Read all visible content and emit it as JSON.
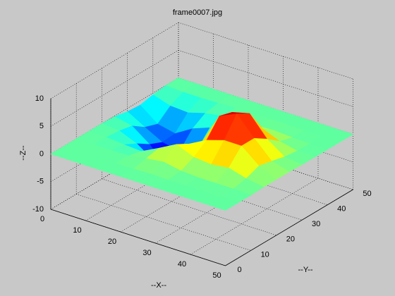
{
  "chart_data": {
    "type": "surface",
    "title": "frame0007.jpg",
    "xlabel": "--X--",
    "ylabel": "--Y--",
    "zlabel": "--Z--",
    "colormap": "jet",
    "grid": true,
    "x": [
      0,
      5,
      10,
      15,
      20,
      25,
      30,
      35,
      40,
      45,
      50
    ],
    "y": [
      0,
      5,
      10,
      15,
      20,
      25,
      30,
      35,
      40,
      45,
      50
    ],
    "z": [
      [
        0,
        0,
        0,
        0,
        0,
        -0.1,
        -0.6,
        -0.8,
        -0.3,
        0,
        0
      ],
      [
        0,
        0,
        0,
        -0.1,
        -0.3,
        -0.8,
        -2.4,
        -3.2,
        -1.3,
        -0.2,
        0
      ],
      [
        0,
        0,
        0,
        -0.4,
        -1.6,
        -3.1,
        -4.1,
        -3.9,
        -1.5,
        -0.2,
        0
      ],
      [
        0,
        0,
        0,
        -0.6,
        -3.8,
        -6.6,
        -4.7,
        -2.0,
        -0.6,
        -0.1,
        0
      ],
      [
        0,
        0,
        0.5,
        1.0,
        -2.3,
        -5.5,
        -3.4,
        -0.8,
        -0.1,
        0,
        0
      ],
      [
        0,
        0.1,
        0.9,
        2.7,
        1.4,
        0.3,
        0.7,
        0.4,
        0.1,
        0,
        0
      ],
      [
        0,
        0,
        0.3,
        1.4,
        3.1,
        6.1,
        5.4,
        1.9,
        0.2,
        0,
        0
      ],
      [
        0,
        0,
        0.1,
        1.1,
        4.1,
        7.5,
        6.2,
        2.1,
        0.3,
        0,
        0
      ],
      [
        0,
        0,
        0.1,
        1.5,
        4.1,
        4.1,
        2.6,
        0.8,
        0.1,
        0,
        0
      ],
      [
        0,
        0,
        0.1,
        0.6,
        1.5,
        1.0,
        0.4,
        0.1,
        0,
        0,
        0
      ],
      [
        0,
        0,
        0,
        0.1,
        0.1,
        0.1,
        0,
        0,
        0,
        0,
        0
      ]
    ],
    "xlim": [
      0,
      50
    ],
    "ylim": [
      0,
      50
    ],
    "zlim": [
      -10,
      10
    ],
    "xticks": [
      0,
      10,
      20,
      30,
      40,
      50
    ],
    "yticks": [
      0,
      10,
      20,
      30,
      40,
      50
    ],
    "zticks": [
      -10,
      -5,
      0,
      5,
      10
    ]
  }
}
